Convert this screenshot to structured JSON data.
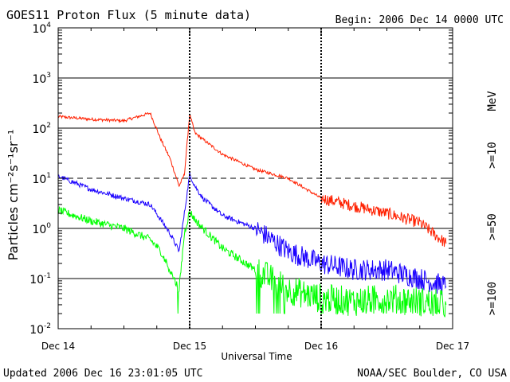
{
  "chart_data": {
    "type": "line",
    "title": "GOES11 Proton Flux (5 minute data)",
    "begin_label": "Begin: 2006 Dec 14 0000 UTC",
    "xlabel": "Universal Time",
    "ylabel": "Particles cm⁻²s⁻¹sr⁻¹",
    "y_scale": "log",
    "ylim": [
      0.01,
      10000
    ],
    "xlim": [
      0,
      3
    ],
    "x_ticks": [
      {
        "value": 0,
        "label": "Dec 14"
      },
      {
        "value": 1,
        "label": "Dec 15"
      },
      {
        "value": 2,
        "label": "Dec 16"
      },
      {
        "value": 3,
        "label": "Dec 17"
      }
    ],
    "y_ticks": [
      {
        "exp": -2,
        "base": "10",
        "sup": "-2"
      },
      {
        "exp": -1,
        "base": "10",
        "sup": "-1"
      },
      {
        "exp": 0,
        "base": "10",
        "sup": "0"
      },
      {
        "exp": 1,
        "base": "10",
        "sup": "1"
      },
      {
        "exp": 2,
        "base": "10",
        "sup": "2"
      },
      {
        "exp": 3,
        "base": "10",
        "sup": "3"
      },
      {
        "exp": 4,
        "base": "10",
        "sup": "4"
      }
    ],
    "unit_label": "MeV",
    "series": [
      {
        "name": ">=10",
        "color": "#ff2000",
        "x": [
          0.0,
          0.25,
          0.5,
          0.7,
          0.78,
          0.85,
          0.92,
          0.96,
          1.0,
          1.04,
          1.1,
          1.25,
          1.5,
          1.75,
          2.0,
          2.25,
          2.5,
          2.75,
          2.95
        ],
        "y": [
          170,
          150,
          140,
          200,
          60,
          25,
          7,
          12,
          190,
          80,
          60,
          30,
          15,
          10,
          4,
          2.8,
          2,
          1.3,
          0.5
        ]
      },
      {
        "name": ">=50",
        "color": "#1a00ff",
        "x": [
          0.0,
          0.25,
          0.5,
          0.7,
          0.78,
          0.85,
          0.92,
          0.96,
          1.0,
          1.04,
          1.1,
          1.25,
          1.5,
          1.75,
          2.0,
          2.25,
          2.5,
          2.75,
          2.95
        ],
        "y": [
          11,
          6,
          4,
          3,
          1.5,
          0.8,
          0.35,
          2,
          12,
          7,
          4,
          1.8,
          1,
          0.35,
          0.2,
          0.15,
          0.15,
          0.1,
          0.07
        ]
      },
      {
        "name": ">=100",
        "color": "#00ff00",
        "x": [
          0.0,
          0.25,
          0.5,
          0.7,
          0.78,
          0.85,
          0.92,
          0.96,
          1.0,
          1.04,
          1.1,
          1.25,
          1.5,
          1.75,
          2.0,
          2.25,
          2.5,
          2.75,
          2.95
        ],
        "y": [
          2.3,
          1.4,
          1.0,
          0.6,
          0.35,
          0.15,
          0.06,
          0.8,
          2.2,
          1.5,
          1.0,
          0.4,
          0.15,
          0.06,
          0.04,
          0.035,
          0.04,
          0.035,
          0.03
        ]
      }
    ],
    "footer_left": "Updated 2006 Dec 16 23:01:05 UTC",
    "footer_right": "NOAA/SEC Boulder, CO USA"
  }
}
